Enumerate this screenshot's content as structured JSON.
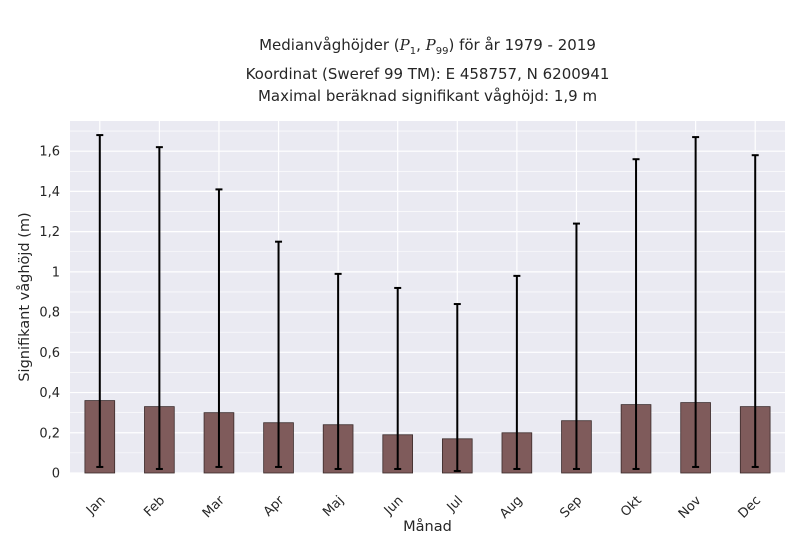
{
  "title": {
    "line1_pre": "Medianvåghöjder (",
    "line1_p1": "P",
    "line1_p1_sub": "1",
    "line1_sep": ", ",
    "line1_p2": "P",
    "line1_p2_sub": "99",
    "line1_post": ") för år 1979 - 2019",
    "line2": "Koordinat (Sweref 99 TM): E 458757, N 6200941",
    "line3": "Maximal beräknad signifikant våghöjd: 1,9 m"
  },
  "colors": {
    "plot_bg": "#eaeaf2",
    "grid": "#ffffff",
    "bar_fill": "#7f5b5b",
    "bar_edge": "#3a2a2a",
    "error_bar": "#000000"
  },
  "chart_data": {
    "type": "bar",
    "title": "Medianvåghöjder (P1, P99) för år 1979 - 2019",
    "xlabel": "Månad",
    "ylabel": "Signifikant våghöjd (m)",
    "categories": [
      "Jan",
      "Feb",
      "Mar",
      "Apr",
      "Maj",
      "Jun",
      "Jul",
      "Aug",
      "Sep",
      "Okt",
      "Nov",
      "Dec"
    ],
    "values": [
      0.36,
      0.33,
      0.3,
      0.25,
      0.24,
      0.19,
      0.17,
      0.2,
      0.26,
      0.34,
      0.35,
      0.33
    ],
    "p1": [
      0.03,
      0.02,
      0.03,
      0.03,
      0.02,
      0.02,
      0.01,
      0.02,
      0.02,
      0.02,
      0.03,
      0.03
    ],
    "p99": [
      1.68,
      1.62,
      1.41,
      1.15,
      0.99,
      0.92,
      0.84,
      0.98,
      1.24,
      1.56,
      1.67,
      1.58
    ],
    "ylim": [
      0,
      1.75
    ],
    "yticks": [
      0,
      0.2,
      0.4,
      0.6,
      0.8,
      1,
      1.2,
      1.4,
      1.6
    ],
    "ytick_labels": [
      "0",
      "0,2",
      "0,4",
      "0,6",
      "0,8",
      "1",
      "1,2",
      "1,4",
      "1,6"
    ],
    "grid": true,
    "xtick_rotation": 45
  }
}
